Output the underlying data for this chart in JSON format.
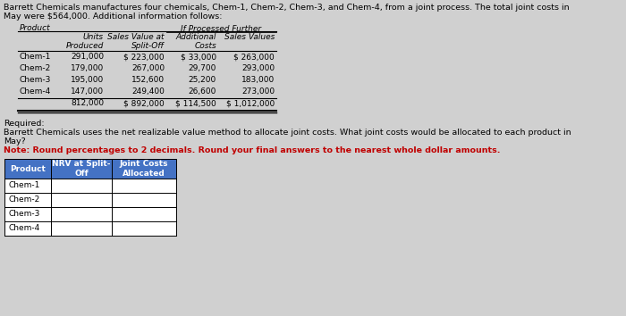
{
  "title_line1": "Barrett Chemicals manufactures four chemicals, Chem-1, Chem-2, Chem-3, and Chem-4, from a joint process. The total joint costs in",
  "title_line2": "May were $564,000. Additional information follows:",
  "info_table": {
    "rows": [
      [
        "Chem-1",
        "291,000",
        "$ 223,000",
        "$ 33,000",
        "$ 263,000"
      ],
      [
        "Chem-2",
        "179,000",
        "267,000",
        "29,700",
        "293,000"
      ],
      [
        "Chem-3",
        "195,000",
        "152,600",
        "25,200",
        "183,000"
      ],
      [
        "Chem-4",
        "147,000",
        "249,400",
        "26,600",
        "273,000"
      ],
      [
        "",
        "812,000",
        "$ 892,000",
        "$ 114,500",
        "$ 1,012,000"
      ]
    ]
  },
  "required_line1": "Required:",
  "required_line2": "Barrett Chemicals uses the net realizable value method to allocate joint costs. What joint costs would be allocated to each product in",
  "required_line3": "May?",
  "note_text": "Note: Round percentages to 2 decimals. Round your final answers to the nearest whole dollar amounts.",
  "answer_rows": [
    "Chem-1",
    "Chem-2",
    "Chem-3",
    "Chem-4"
  ],
  "bg_color": "#d0d0d0",
  "table_header_bg": "#4472c4",
  "table_header_text": "#ffffff",
  "table_cell_bg": "#e8e8e8",
  "table_cell_bg2": "#f0f0f0",
  "note_color": "#c00000",
  "text_color": "#000000",
  "fs_title": 6.8,
  "fs_table": 6.5,
  "fs_req": 6.8
}
